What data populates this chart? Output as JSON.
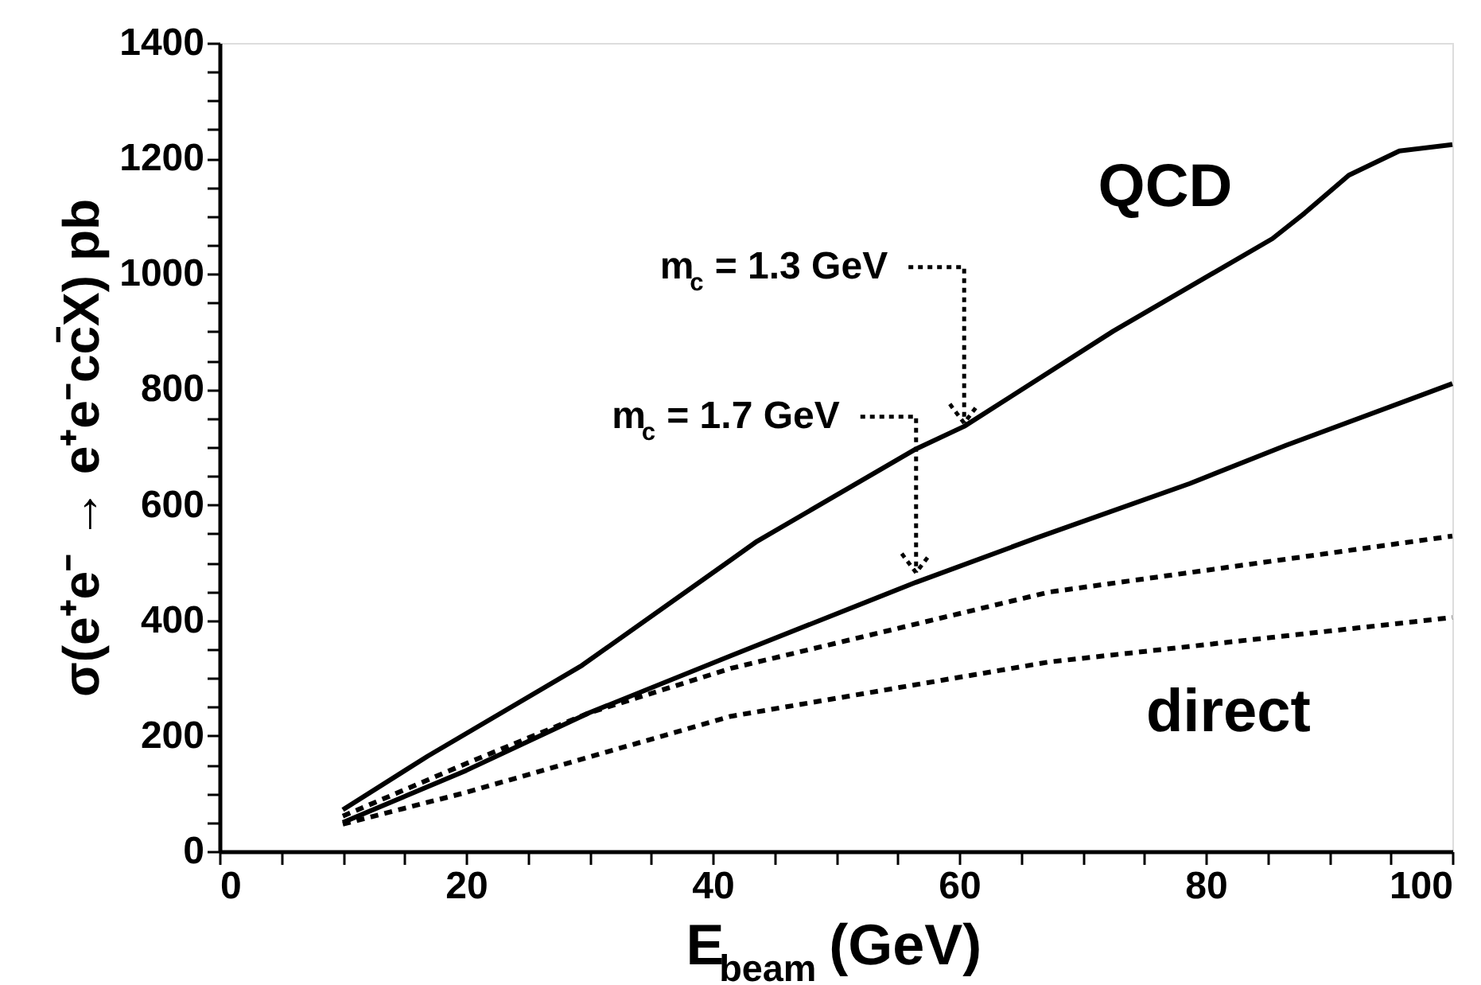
{
  "chart_data": {
    "type": "line",
    "xlabel": "E$_{beam}$ (GeV)",
    "ylabel": "σ(e⁺e⁻ → e⁺e⁻cc̄X) pb",
    "xlim": [
      0,
      100
    ],
    "ylim": [
      0,
      1400
    ],
    "xticks": [
      0,
      {
        "value": 5,
        "label": null
      },
      {
        "value": 10,
        "label": null
      },
      {
        "value": 15,
        "label": null
      },
      20,
      {
        "value": 25,
        "label": null
      },
      {
        "value": 30,
        "label": null
      },
      {
        "value": 35,
        "label": null
      },
      40,
      {
        "value": 45,
        "label": null
      },
      {
        "value": 50,
        "label": null
      },
      {
        "value": 55,
        "label": null
      },
      60,
      {
        "value": 65,
        "label": null
      },
      {
        "value": 70,
        "label": null
      },
      {
        "value": 75,
        "label": null
      },
      80,
      {
        "value": 85,
        "label": null
      },
      {
        "value": 90,
        "label": null
      },
      {
        "value": 95,
        "label": null
      },
      100
    ],
    "yticks": [
      0,
      {
        "value": 50,
        "label": null
      },
      {
        "value": 100,
        "label": null
      },
      {
        "value": 150,
        "label": null
      },
      200,
      {
        "value": 250,
        "label": null
      },
      {
        "value": 300,
        "label": null
      },
      {
        "value": 350,
        "label": null
      },
      400,
      {
        "value": 450,
        "label": null
      },
      {
        "value": 500,
        "label": null
      },
      {
        "value": 550,
        "label": null
      },
      600,
      {
        "value": 650,
        "label": null
      },
      {
        "value": 700,
        "label": null
      },
      {
        "value": 750,
        "label": null
      },
      800,
      {
        "value": 850,
        "label": null
      },
      {
        "value": 900,
        "label": null
      },
      {
        "value": 950,
        "label": null
      },
      1000,
      {
        "value": 1050,
        "label": null
      },
      {
        "value": 1100,
        "label": null
      },
      {
        "value": 1150,
        "label": null
      },
      1200,
      {
        "value": 1250,
        "label": null
      },
      {
        "value": 1300,
        "label": null
      },
      {
        "value": 1350,
        "label": null
      },
      1400
    ],
    "grid": false,
    "marker": "none",
    "series": [
      {
        "color": "#000000",
        "line_style": "solid",
        "x": [
          10,
          16.9,
          29.4,
          41.5,
          43.6,
          56.5,
          60.4,
          72.5,
          85.4,
          88,
          91.6,
          95.7,
          100
        ],
        "values": [
          72,
          165,
          322,
          505,
          537,
          697,
          736,
          901,
          1061,
          1105,
          1171,
          1213,
          1224
        ]
      },
      {
        "color": "#000000",
        "line_style": "solid",
        "x": [
          10,
          20,
          30,
          41.5,
          56.5,
          66.3,
          78.7,
          86.5,
          100
        ],
        "values": [
          50,
          140,
          240,
          339,
          466,
          543,
          637,
          703,
          810
        ]
      },
      {
        "color": "#000000",
        "line_style": "dashed",
        "x": [
          10,
          20,
          30,
          41.5,
          67.3,
          100
        ],
        "values": [
          61,
          152,
          240,
          317,
          449,
          546
        ]
      },
      {
        "color": "#000000",
        "line_style": "dashed",
        "x": [
          10,
          20,
          41.5,
          67.3,
          100
        ],
        "values": [
          47,
          102,
          234,
          328,
          405
        ]
      }
    ],
    "annotations": [
      {
        "text": "m$_{c}$ = 1.3 GeV",
        "x": 60.4,
        "y": 736
      },
      {
        "text": "m$_{c}$ = 1.7 GeV",
        "x": 56.5,
        "y": 477
      },
      "QCD",
      "direct"
    ]
  }
}
